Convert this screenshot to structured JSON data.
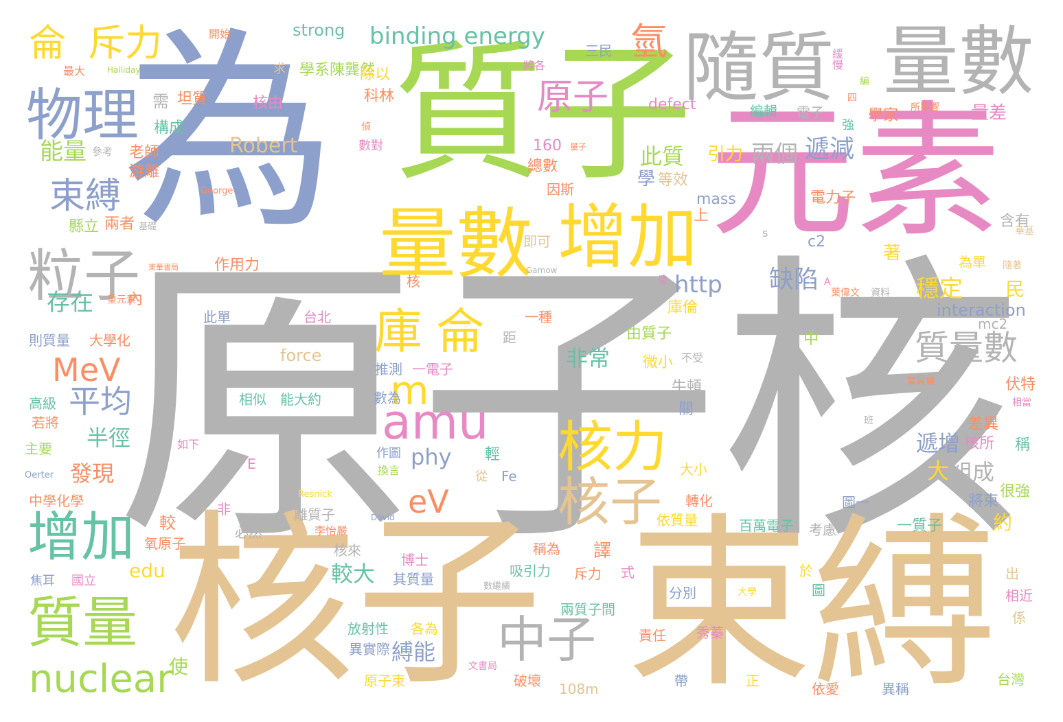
{
  "palette": {
    "gray": "#b3b3b3",
    "blue": "#8da0cb",
    "green": "#a6d854",
    "pink": "#e78ac3",
    "tan": "#e5c494",
    "yellow": "#ffd92f",
    "teal": "#66c2a5",
    "orange": "#fc8d62"
  },
  "words": [
    {
      "text": "原子核"
    },
    {
      "text": "為"
    },
    {
      "text": "質子"
    },
    {
      "text": "核子"
    },
    {
      "text": "束縛"
    },
    {
      "text": "元素"
    },
    {
      "text": "隨質"
    },
    {
      "text": "量數"
    },
    {
      "text": "量數"
    },
    {
      "text": "增加"
    },
    {
      "text": "物理"
    },
    {
      "text": "粒子"
    },
    {
      "text": "束縛"
    },
    {
      "text": "庫"
    },
    {
      "text": "侖"
    },
    {
      "text": "amu"
    },
    {
      "text": "核力"
    },
    {
      "text": "核子"
    },
    {
      "text": "中子"
    },
    {
      "text": "增加"
    },
    {
      "text": "質量"
    },
    {
      "text": "nuclear"
    },
    {
      "text": "侖"
    },
    {
      "text": "斥力"
    },
    {
      "text": "binding energy"
    },
    {
      "text": "氫"
    },
    {
      "text": "原子"
    },
    {
      "text": "MeV"
    },
    {
      "text": "平均"
    },
    {
      "text": "eV"
    },
    {
      "text": "m"
    },
    {
      "text": "質量數"
    },
    {
      "text": "strong"
    },
    {
      "text": "能量"
    },
    {
      "text": "Robert"
    },
    {
      "text": "此質"
    },
    {
      "text": "兩個"
    },
    {
      "text": "遞減"
    },
    {
      "text": "http"
    },
    {
      "text": "缺陷"
    },
    {
      "text": "穩定"
    },
    {
      "text": "interaction"
    },
    {
      "text": "存在"
    },
    {
      "text": "半徑"
    },
    {
      "text": "發現"
    },
    {
      "text": "非常"
    },
    {
      "text": "phy"
    },
    {
      "text": "edu"
    },
    {
      "text": "force"
    },
    {
      "text": "遞增"
    },
    {
      "text": "組成"
    },
    {
      "text": "大"
    },
    {
      "text": "較大"
    },
    {
      "text": "縛能"
    },
    {
      "text": "mass"
    },
    {
      "text": "defect"
    },
    {
      "text": "學系陳龔然"
    },
    {
      "text": "科林"
    },
    {
      "text": "除以"
    },
    {
      "text": "核由"
    },
    {
      "text": "坦質"
    },
    {
      "text": "構成"
    },
    {
      "text": "老師"
    },
    {
      "text": "游離"
    },
    {
      "text": "縣立"
    },
    {
      "text": "兩者"
    },
    {
      "text": "作用力"
    },
    {
      "text": "即可"
    },
    {
      "text": "因斯"
    },
    {
      "text": "總數"
    },
    {
      "text": "160"
    },
    {
      "text": "引力"
    },
    {
      "text": "學"
    },
    {
      "text": "等效"
    },
    {
      "text": "編輯"
    },
    {
      "text": "電子"
    },
    {
      "text": "學家"
    },
    {
      "text": "量差"
    },
    {
      "text": "電力子"
    },
    {
      "text": "含有"
    },
    {
      "text": "c2"
    },
    {
      "text": "上"
    },
    {
      "text": "著"
    },
    {
      "text": "民"
    },
    {
      "text": "庫倫"
    },
    {
      "text": "由質子"
    },
    {
      "text": "mc2"
    },
    {
      "text": "中"
    },
    {
      "text": "微小"
    },
    {
      "text": "不受"
    },
    {
      "text": "牛頓"
    },
    {
      "text": "關"
    },
    {
      "text": "伏特"
    },
    {
      "text": "差異"
    },
    {
      "text": "核所"
    },
    {
      "text": "稱"
    },
    {
      "text": "很強"
    },
    {
      "text": "將束"
    },
    {
      "text": "約"
    },
    {
      "text": "一質子"
    },
    {
      "text": "百萬電子"
    },
    {
      "text": "考慮"
    },
    {
      "text": "依質量"
    },
    {
      "text": "轉化"
    },
    {
      "text": "大小"
    },
    {
      "text": "從"
    },
    {
      "text": "Fe"
    },
    {
      "text": "換言"
    },
    {
      "text": "作圖"
    },
    {
      "text": "數為"
    },
    {
      "text": "推測"
    },
    {
      "text": "一電子"
    },
    {
      "text": "相似"
    },
    {
      "text": "能大約"
    },
    {
      "text": "此單"
    },
    {
      "text": "台北"
    },
    {
      "text": "一種"
    },
    {
      "text": "則質量"
    },
    {
      "text": "大學化"
    },
    {
      "text": "高級"
    },
    {
      "text": "若將"
    },
    {
      "text": "主要"
    },
    {
      "text": "中學化學"
    },
    {
      "text": "如下"
    },
    {
      "text": "Oerter"
    },
    {
      "text": "Resnick"
    },
    {
      "text": "David"
    },
    {
      "text": "離質子"
    },
    {
      "text": "李怡嚴"
    },
    {
      "text": "核來"
    },
    {
      "text": "必然"
    },
    {
      "text": "氧原子"
    },
    {
      "text": "焦耳"
    },
    {
      "text": "國立"
    },
    {
      "text": "博士"
    },
    {
      "text": "其質量"
    },
    {
      "text": "稱為"
    },
    {
      "text": "吸引力"
    },
    {
      "text": "斥力"
    },
    {
      "text": "式"
    },
    {
      "text": "數繼續"
    },
    {
      "text": "分別"
    },
    {
      "text": "大學"
    },
    {
      "text": "兩質子間"
    },
    {
      "text": "放射性"
    },
    {
      "text": "各為"
    },
    {
      "text": "異實際"
    },
    {
      "text": "責任"
    },
    {
      "text": "秀蓁"
    },
    {
      "text": "文書局"
    },
    {
      "text": "原子束"
    },
    {
      "text": "破壞"
    },
    {
      "text": "108m"
    },
    {
      "text": "帶"
    },
    {
      "text": "正"
    },
    {
      "text": "依愛"
    },
    {
      "text": "異稱"
    },
    {
      "text": "台灣"
    },
    {
      "text": "出"
    },
    {
      "text": "相近"
    },
    {
      "text": "係"
    },
    {
      "text": "使"
    },
    {
      "text": "較"
    },
    {
      "text": "譯"
    },
    {
      "text": "於"
    },
    {
      "text": "圖"
    },
    {
      "text": "圖一"
    },
    {
      "text": "內"
    },
    {
      "text": "核"
    },
    {
      "text": "需"
    },
    {
      "text": "參考"
    },
    {
      "text": "偵"
    },
    {
      "text": "數對"
    },
    {
      "text": "量子"
    },
    {
      "text": "George"
    },
    {
      "text": "基礎"
    },
    {
      "text": "東華書局"
    },
    {
      "text": "Gamow"
    },
    {
      "text": "梁"
    },
    {
      "text": "A"
    },
    {
      "text": "葉偉文"
    },
    {
      "text": "資料"
    },
    {
      "text": "s"
    },
    {
      "text": "E"
    },
    {
      "text": "距"
    },
    {
      "text": "班"
    },
    {
      "text": "當質量"
    },
    {
      "text": "相當"
    },
    {
      "text": "為單"
    },
    {
      "text": "隨著"
    },
    {
      "text": "華基"
    },
    {
      "text": "重元素"
    },
    {
      "text": "開始"
    },
    {
      "text": "最大"
    },
    {
      "text": "Halliday"
    },
    {
      "text": "求"
    },
    {
      "text": "三民"
    },
    {
      "text": "將各"
    },
    {
      "text": "緩慢"
    },
    {
      "text": "編"
    },
    {
      "text": "四"
    },
    {
      "text": "強"
    },
    {
      "text": "所影響"
    },
    {
      "text": "非"
    },
    {
      "text": "輕"
    }
  ]
}
